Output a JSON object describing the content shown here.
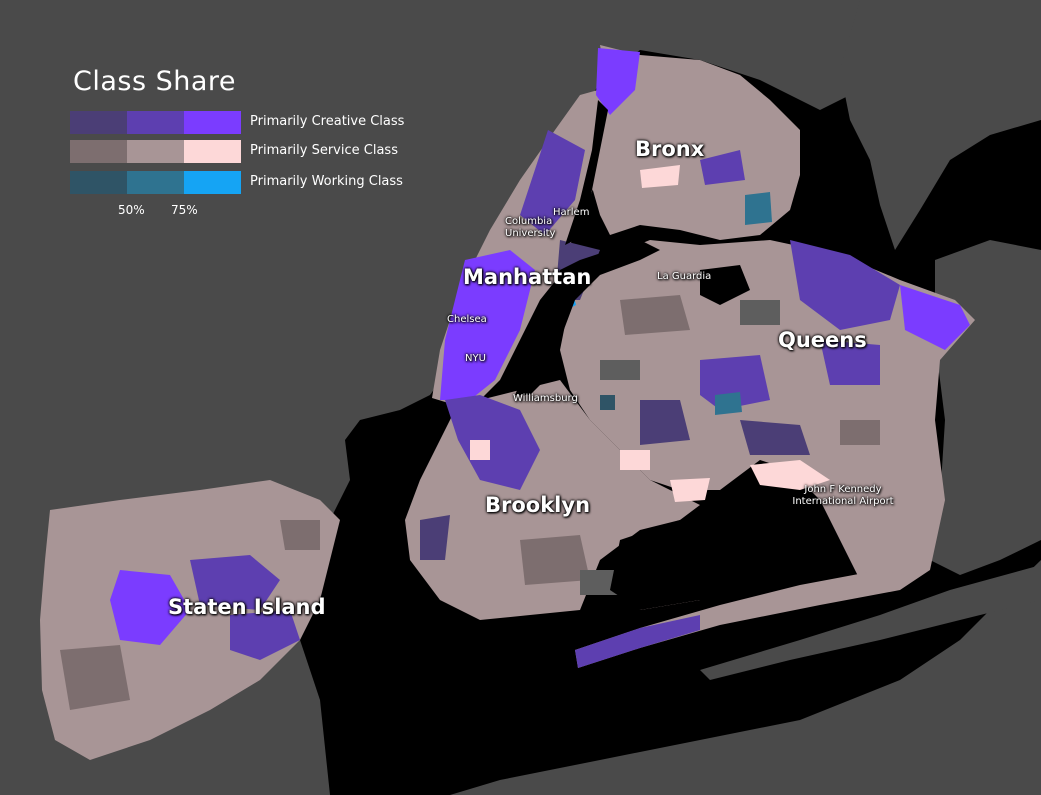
{
  "legend": {
    "title": "Class Share",
    "rows": [
      {
        "label": "Primarily Creative Class",
        "colors": [
          "#4b3e76",
          "#5d3fb0",
          "#7b3cff"
        ]
      },
      {
        "label": "Primarily Service Class",
        "colors": [
          "#7d6e6f",
          "#a89596",
          "#fdd8d8"
        ]
      },
      {
        "label": "Primarily Working Class",
        "colors": [
          "#2f5466",
          "#2f7390",
          "#15a4f4"
        ]
      }
    ],
    "ticks": [
      "50%",
      "75%"
    ]
  },
  "labels": {
    "bronx": "Bronx",
    "manhattan": "Manhattan",
    "queens": "Queens",
    "brooklyn": "Brooklyn",
    "staten_island": "Staten Island",
    "harlem": "Harlem",
    "columbia": "Columbia University",
    "la_guardia": "La Guardia",
    "chelsea": "Chelsea",
    "nyu": "NYU",
    "williamsburg": "Williamsburg",
    "jfk": "John F Kennedy International Airport"
  },
  "colors": {
    "background": "#4a4a4a",
    "water": "#000000",
    "land_service": "#a89596",
    "creative_dark": "#4b3e76",
    "creative_mid": "#5d3fb0",
    "creative_bright": "#7b3cff",
    "service_dark": "#7d6e6f",
    "service_light": "#fdd8d8",
    "working_mid": "#2f7390",
    "working_bright": "#15a4f4",
    "gray_tract": "#5e5e5e"
  }
}
